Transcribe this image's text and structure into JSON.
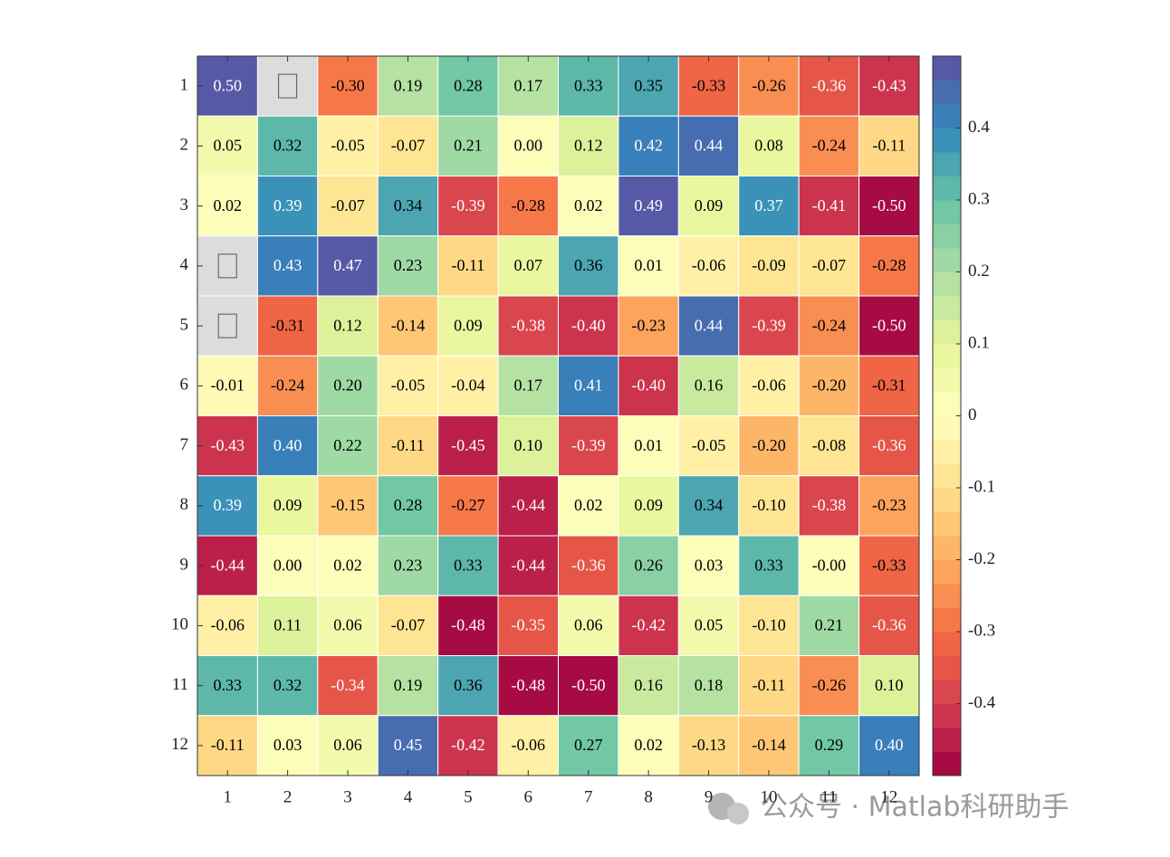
{
  "chart_data": {
    "type": "heatmap",
    "x_categories": [
      "1",
      "2",
      "3",
      "4",
      "5",
      "6",
      "7",
      "8",
      "9",
      "10",
      "11",
      "12"
    ],
    "y_categories": [
      "1",
      "2",
      "3",
      "4",
      "5",
      "6",
      "7",
      "8",
      "9",
      "10",
      "11",
      "12"
    ],
    "values": [
      [
        0.5,
        null,
        -0.3,
        0.19,
        0.28,
        0.17,
        0.33,
        0.35,
        -0.33,
        -0.26,
        -0.36,
        -0.43
      ],
      [
        0.05,
        0.32,
        -0.05,
        -0.07,
        0.21,
        0,
        0.12,
        0.42,
        0.44,
        0.08,
        -0.24,
        -0.11
      ],
      [
        0.02,
        0.39,
        -0.07,
        0.34,
        -0.39,
        -0.28,
        0.02,
        0.49,
        0.09,
        0.37,
        -0.41,
        -0.5
      ],
      [
        null,
        0.43,
        0.47,
        0.23,
        -0.11,
        0.07,
        0.36,
        0.01,
        -0.06,
        -0.09,
        -0.07,
        -0.28
      ],
      [
        null,
        -0.31,
        0.12,
        -0.14,
        0.09,
        -0.38,
        -0.4,
        -0.23,
        0.44,
        -0.39,
        -0.24,
        -0.5
      ],
      [
        -0.01,
        -0.24,
        0.2,
        -0.05,
        -0.04,
        0.17,
        0.41,
        -0.4,
        0.16,
        -0.06,
        -0.2,
        -0.31
      ],
      [
        -0.43,
        0.4,
        0.22,
        -0.11,
        -0.45,
        0.1,
        -0.39,
        0.01,
        -0.05,
        -0.2,
        -0.08,
        -0.36
      ],
      [
        0.39,
        0.09,
        -0.15,
        0.28,
        -0.27,
        -0.44,
        0.02,
        0.09,
        0.34,
        -0.1,
        -0.38,
        -0.23
      ],
      [
        -0.44,
        0,
        0.02,
        0.23,
        0.33,
        -0.44,
        -0.36,
        0.26,
        0.03,
        0.33,
        0,
        -0.33
      ],
      [
        -0.06,
        0.11,
        0.06,
        -0.07,
        -0.48,
        -0.35,
        0.06,
        -0.42,
        0.05,
        -0.1,
        0.21,
        -0.36
      ],
      [
        0.33,
        0.32,
        -0.34,
        0.19,
        0.36,
        -0.48,
        -0.5,
        0.16,
        0.18,
        -0.11,
        -0.26,
        0.1
      ],
      [
        -0.11,
        0.03,
        0.06,
        0.45,
        -0.42,
        -0.06,
        0.27,
        0.02,
        -0.13,
        -0.14,
        0.29,
        0.4
      ]
    ],
    "value_labels": [
      [
        "0.50",
        null,
        "-0.30",
        "0.19",
        "0.28",
        "0.17",
        "0.33",
        "0.35",
        "-0.33",
        "-0.26",
        "-0.36",
        "-0.43"
      ],
      [
        "0.05",
        "0.32",
        "-0.05",
        "-0.07",
        "0.21",
        "0.00",
        "0.12",
        "0.42",
        "0.44",
        "0.08",
        "-0.24",
        "-0.11"
      ],
      [
        "0.02",
        "0.39",
        "-0.07",
        "0.34",
        "-0.39",
        "-0.28",
        "0.02",
        "0.49",
        "0.09",
        "0.37",
        "-0.41",
        "-0.50"
      ],
      [
        null,
        "0.43",
        "0.47",
        "0.23",
        "-0.11",
        "0.07",
        "0.36",
        "0.01",
        "-0.06",
        "-0.09",
        "-0.07",
        "-0.28"
      ],
      [
        null,
        "-0.31",
        "0.12",
        "-0.14",
        "0.09",
        "-0.38",
        "-0.40",
        "-0.23",
        "0.44",
        "-0.39",
        "-0.24",
        "-0.50"
      ],
      [
        "-0.01",
        "-0.24",
        "0.20",
        "-0.05",
        "-0.04",
        "0.17",
        "0.41",
        "-0.40",
        "0.16",
        "-0.06",
        "-0.20",
        "-0.31"
      ],
      [
        "-0.43",
        "0.40",
        "0.22",
        "-0.11",
        "-0.45",
        "0.10",
        "-0.39",
        "0.01",
        "-0.05",
        "-0.20",
        "-0.08",
        "-0.36"
      ],
      [
        "0.39",
        "0.09",
        "-0.15",
        "0.28",
        "-0.27",
        "-0.44",
        "0.02",
        "0.09",
        "0.34",
        "-0.10",
        "-0.38",
        "-0.23"
      ],
      [
        "-0.44",
        "0.00",
        "0.02",
        "0.23",
        "0.33",
        "-0.44",
        "-0.36",
        "0.26",
        "0.03",
        "0.33",
        "-0.00",
        "-0.33"
      ],
      [
        "-0.06",
        "0.11",
        "0.06",
        "-0.07",
        "-0.48",
        "-0.35",
        "0.06",
        "-0.42",
        "0.05",
        "-0.10",
        "0.21",
        "-0.36"
      ],
      [
        "0.33",
        "0.32",
        "-0.34",
        "0.19",
        "0.36",
        "-0.48",
        "-0.50",
        "0.16",
        "0.18",
        "-0.11",
        "-0.26",
        "0.10"
      ],
      [
        "-0.11",
        "0.03",
        "0.06",
        "0.45",
        "-0.42",
        "-0.06",
        "0.27",
        "0.02",
        "-0.13",
        "-0.14",
        "0.29",
        "0.40"
      ]
    ],
    "colormap": [
      "#9e0142",
      "#d53e4f",
      "#f46d43",
      "#fdae61",
      "#fee08b",
      "#ffffbf",
      "#e6f598",
      "#abdda4",
      "#66c2a5",
      "#3288bd",
      "#5e4fa2"
    ],
    "levels": 30,
    "missing_color": "#dcdcdc",
    "clim": [
      -0.5,
      0.5
    ],
    "cticks": [
      -0.4,
      -0.3,
      -0.2,
      -0.1,
      0,
      0.1,
      0.2,
      0.3,
      0.4
    ]
  },
  "watermark": "公众号 · Matlab科研助手"
}
